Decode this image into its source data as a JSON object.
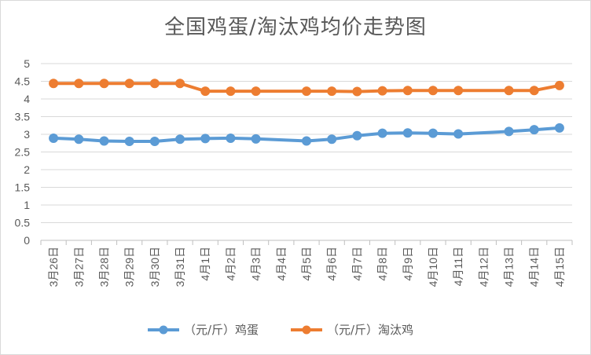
{
  "chart_data": {
    "type": "line",
    "title": "全国鸡蛋/淘汰鸡均价走势图",
    "categories": [
      "3月26日",
      "3月27日",
      "3月28日",
      "3月29日",
      "3月30日",
      "3月31日",
      "4月1日",
      "4月2日",
      "4月3日",
      "4月4日",
      "4月5日",
      "4月6日",
      "4月7日",
      "4月8日",
      "4月9日",
      "4月10日",
      "4月11日",
      "4月12日",
      "4月13日",
      "4月14日",
      "4月15日"
    ],
    "ylim": [
      0,
      5
    ],
    "yticks": [
      "0",
      "0.5",
      "1",
      "1.5",
      "2",
      "2.5",
      "3",
      "3.5",
      "4",
      "4.5",
      "5"
    ],
    "grid": true,
    "legend_position": "bottom",
    "series": [
      {
        "name": "（元/斤）鸡蛋",
        "color": "#5b9bd5",
        "values": [
          2.89,
          2.86,
          2.81,
          2.8,
          2.8,
          2.86,
          2.88,
          2.89,
          2.87,
          null,
          2.81,
          2.86,
          2.96,
          3.03,
          3.04,
          3.03,
          3.01,
          null,
          3.08,
          3.13,
          3.18
        ]
      },
      {
        "name": "（元/斤）淘汰鸡",
        "color": "#ed7d31",
        "values": [
          4.44,
          4.44,
          4.44,
          4.44,
          4.44,
          4.44,
          4.22,
          4.22,
          4.22,
          null,
          4.22,
          4.22,
          4.21,
          4.23,
          4.24,
          4.24,
          4.24,
          null,
          4.24,
          4.24,
          4.38
        ]
      }
    ]
  }
}
